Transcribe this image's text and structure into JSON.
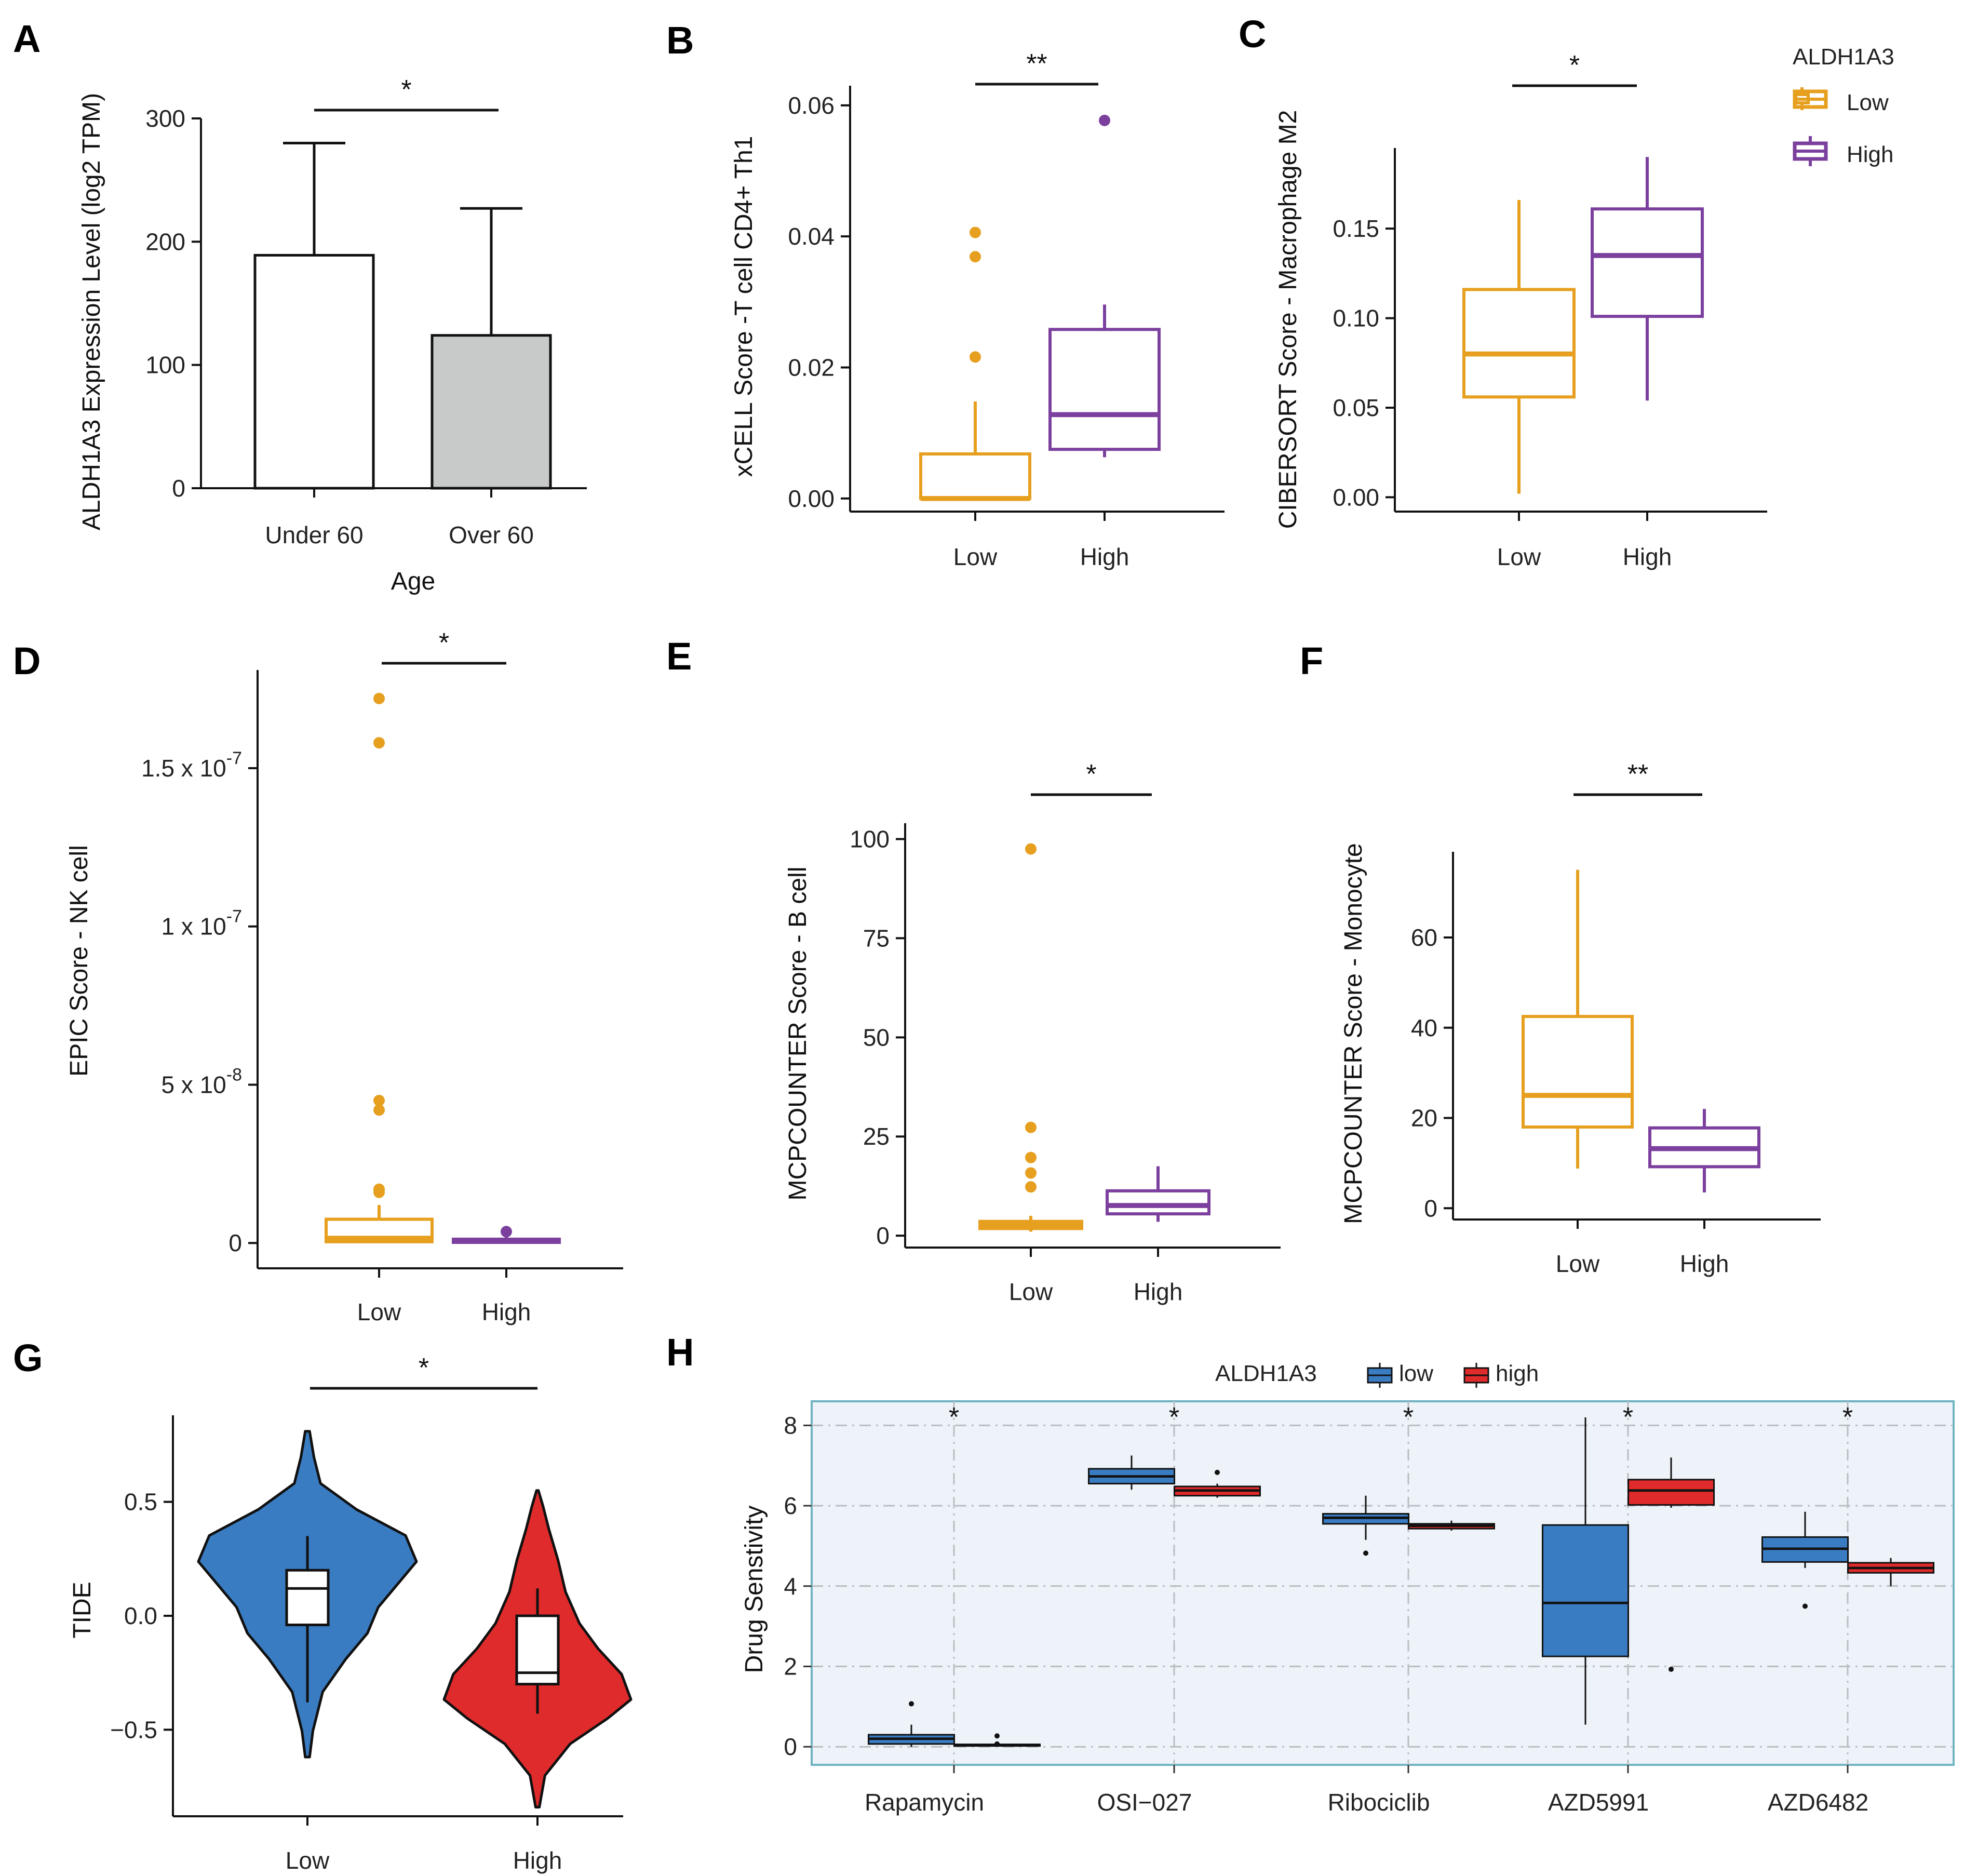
{
  "colors": {
    "low_orange": "#E69F1E",
    "high_purple": "#7B3F9E",
    "low_blue": "#3A7CC2",
    "high_red": "#DF2B2B",
    "bar_over": "#C8CAC9",
    "panel_bg": "#EDF3F9",
    "panel_border": "#6FB3C2"
  },
  "legend_top": {
    "title": "ALDH1A3",
    "low": "Low",
    "high": "High"
  },
  "legend_bottom": {
    "title": "ALDH1A3",
    "low": "low",
    "high": "high"
  },
  "chart_data": [
    {
      "panel": "A",
      "type": "bar",
      "xlabel": "Age",
      "ylabel": "ALDH1A3 Expression Level (log2 TPM)",
      "categories": [
        "Under 60",
        "Over 60"
      ],
      "values": [
        189,
        124
      ],
      "errors": [
        91,
        103
      ],
      "ylim": [
        0,
        300
      ],
      "ticks": [
        0,
        100,
        200,
        300
      ],
      "tick_labels": [
        "0",
        "100",
        "200",
        "300"
      ],
      "significance": "*"
    },
    {
      "panel": "B",
      "type": "box",
      "ylabel": "xCELL Score -T cell CD4+ Th1",
      "categories": [
        "Low",
        "High"
      ],
      "ylim": [
        -0.002,
        0.063
      ],
      "ticks": [
        0,
        0.02,
        0.04,
        0.06
      ],
      "tick_labels": [
        "0.00",
        "0.02",
        "0.04",
        "0.06"
      ],
      "boxes": [
        {
          "q1": 0.0,
          "median": 0.0,
          "q3": 0.0068,
          "whisker_low": 0.0,
          "whisker_high": 0.0148,
          "outliers": [
            0.0216,
            0.0369,
            0.0406
          ]
        },
        {
          "q1": 0.0075,
          "median": 0.0128,
          "q3": 0.0258,
          "whisker_low": 0.0063,
          "whisker_high": 0.0296,
          "outliers": [
            0.0577
          ]
        }
      ],
      "significance": "**"
    },
    {
      "panel": "C",
      "type": "box",
      "ylabel": "CIBERSORT Score - Macrophage M2",
      "categories": [
        "Low",
        "High"
      ],
      "ylim": [
        -0.008,
        0.195
      ],
      "ticks": [
        0,
        0.05,
        0.1,
        0.15
      ],
      "tick_labels": [
        "0.00",
        "0.05",
        "0.10",
        "0.15"
      ],
      "boxes": [
        {
          "q1": 0.056,
          "median": 0.08,
          "q3": 0.116,
          "whisker_low": 0.002,
          "whisker_high": 0.166,
          "outliers": []
        },
        {
          "q1": 0.101,
          "median": 0.135,
          "q3": 0.161,
          "whisker_low": 0.054,
          "whisker_high": 0.19,
          "outliers": []
        }
      ],
      "significance": "*"
    },
    {
      "panel": "D",
      "type": "box",
      "ylabel": "EPIC Score - NK cell",
      "categories": [
        "Low",
        "High"
      ],
      "ylim": [
        -8e-09,
        1.81e-07
      ],
      "ticks": [
        0,
        5e-08,
        1e-07,
        1.5e-07
      ],
      "tick_labels": [
        [
          "0",
          ""
        ],
        [
          "5 x 10",
          "-8"
        ],
        [
          "1 x 10",
          "-7"
        ],
        [
          "1.5 x 10",
          "-7"
        ]
      ],
      "boxes": [
        {
          "q1": 4e-10,
          "median": 1.5e-09,
          "q3": 7.5e-09,
          "whisker_low": 0.0,
          "whisker_high": 1.2e-08,
          "outliers": [
            1.6e-08,
            1.7e-08,
            4.2e-08,
            4.5e-08,
            1.58e-07,
            1.72e-07
          ]
        },
        {
          "q1": 2e-10,
          "median": 6e-10,
          "q3": 1.2e-09,
          "whisker_low": 0.0,
          "whisker_high": 1.9e-09,
          "outliers": [
            3.6e-09
          ]
        }
      ],
      "significance": "*"
    },
    {
      "panel": "E",
      "type": "box",
      "ylabel": "MCPCOUNTER Score - B cell",
      "categories": [
        "Low",
        "High"
      ],
      "ylim": [
        -3,
        104
      ],
      "ticks": [
        0,
        25,
        50,
        75,
        100
      ],
      "tick_labels": [
        "0",
        "25",
        "50",
        "75",
        "100"
      ],
      "boxes": [
        {
          "q1": 1.8,
          "median": 2.6,
          "q3": 3.6,
          "whisker_low": 1.0,
          "whisker_high": 5.0,
          "outliers": [
            12.3,
            15.8,
            19.7,
            27.3,
            97.5
          ]
        },
        {
          "q1": 5.5,
          "median": 7.6,
          "q3": 11.3,
          "whisker_low": 3.5,
          "whisker_high": 17.5,
          "outliers": []
        }
      ],
      "significance": "*"
    },
    {
      "panel": "F",
      "type": "box",
      "ylabel": "MCPCOUNTER Score - Monocyte",
      "categories": [
        "Low",
        "High"
      ],
      "ylim": [
        -2.5,
        79
      ],
      "ticks": [
        0,
        20,
        40,
        60
      ],
      "tick_labels": [
        "0",
        "20",
        "40",
        "60"
      ],
      "boxes": [
        {
          "q1": 18.0,
          "median": 25.0,
          "q3": 42.5,
          "whisker_low": 8.8,
          "whisker_high": 75.0,
          "outliers": []
        },
        {
          "q1": 9.2,
          "median": 13.2,
          "q3": 17.8,
          "whisker_low": 3.5,
          "whisker_high": 22.0,
          "outliers": []
        }
      ],
      "significance": "**"
    },
    {
      "panel": "G",
      "type": "violin",
      "ylabel": "TIDE",
      "categories": [
        "Low",
        "High"
      ],
      "ylim": [
        -0.88,
        0.88
      ],
      "ticks": [
        -0.5,
        0,
        0.5
      ],
      "tick_labels": [
        "−0.5",
        "0.0",
        "0.5"
      ],
      "violins": [
        {
          "min": -0.62,
          "max": 0.81,
          "q1": -0.04,
          "median": 0.12,
          "q3": 0.2,
          "whisker_low": -0.38,
          "whisker_high": 0.35
        },
        {
          "min": -0.84,
          "max": 0.55,
          "q1": -0.3,
          "median": -0.25,
          "q3": 0.0,
          "whisker_low": -0.43,
          "whisker_high": 0.12
        }
      ],
      "significance": "*"
    },
    {
      "panel": "H",
      "type": "box",
      "ylabel": "Drug Senstivity",
      "categories": [
        "Rapamycin",
        "OSI−027",
        "Ribociclib",
        "AZD5991",
        "AZD6482"
      ],
      "ylim": [
        -0.45,
        8.6
      ],
      "ticks": [
        0,
        2,
        4,
        6,
        8
      ],
      "tick_labels": [
        "0",
        "2",
        "4",
        "6",
        "8"
      ],
      "series": [
        {
          "name": "low",
          "boxes": [
            {
              "q1": 0.07,
              "median": 0.2,
              "q3": 0.3,
              "whisker_low": 0.0,
              "whisker_high": 0.55,
              "outliers": [
                1.07
              ]
            },
            {
              "q1": 6.55,
              "median": 6.73,
              "q3": 6.92,
              "whisker_low": 6.4,
              "whisker_high": 7.25,
              "outliers": []
            },
            {
              "q1": 5.55,
              "median": 5.7,
              "q3": 5.8,
              "whisker_low": 5.15,
              "whisker_high": 6.25,
              "outliers": [
                4.82
              ]
            },
            {
              "q1": 2.25,
              "median": 3.58,
              "q3": 5.52,
              "whisker_low": 0.55,
              "whisker_high": 8.2,
              "outliers": []
            },
            {
              "q1": 4.6,
              "median": 4.93,
              "q3": 5.22,
              "whisker_low": 4.45,
              "whisker_high": 5.85,
              "outliers": [
                3.5
              ]
            }
          ]
        },
        {
          "name": "high",
          "boxes": [
            {
              "q1": 0.02,
              "median": 0.04,
              "q3": 0.06,
              "whisker_low": 0.0,
              "whisker_high": 0.08,
              "outliers": [
                0.27,
                0.07
              ]
            },
            {
              "q1": 6.25,
              "median": 6.38,
              "q3": 6.48,
              "whisker_low": 6.2,
              "whisker_high": 6.55,
              "outliers": [
                6.83
              ]
            },
            {
              "q1": 5.43,
              "median": 5.5,
              "q3": 5.55,
              "whisker_low": 5.38,
              "whisker_high": 5.63,
              "outliers": []
            },
            {
              "q1": 6.02,
              "median": 6.38,
              "q3": 6.65,
              "whisker_low": 5.95,
              "whisker_high": 7.2,
              "outliers": [
                1.93
              ]
            },
            {
              "q1": 4.33,
              "median": 4.45,
              "q3": 4.58,
              "whisker_low": 4.0,
              "whisker_high": 4.7,
              "outliers": []
            }
          ]
        }
      ],
      "significance": [
        "*",
        "*",
        "*",
        "*",
        "*"
      ]
    }
  ]
}
